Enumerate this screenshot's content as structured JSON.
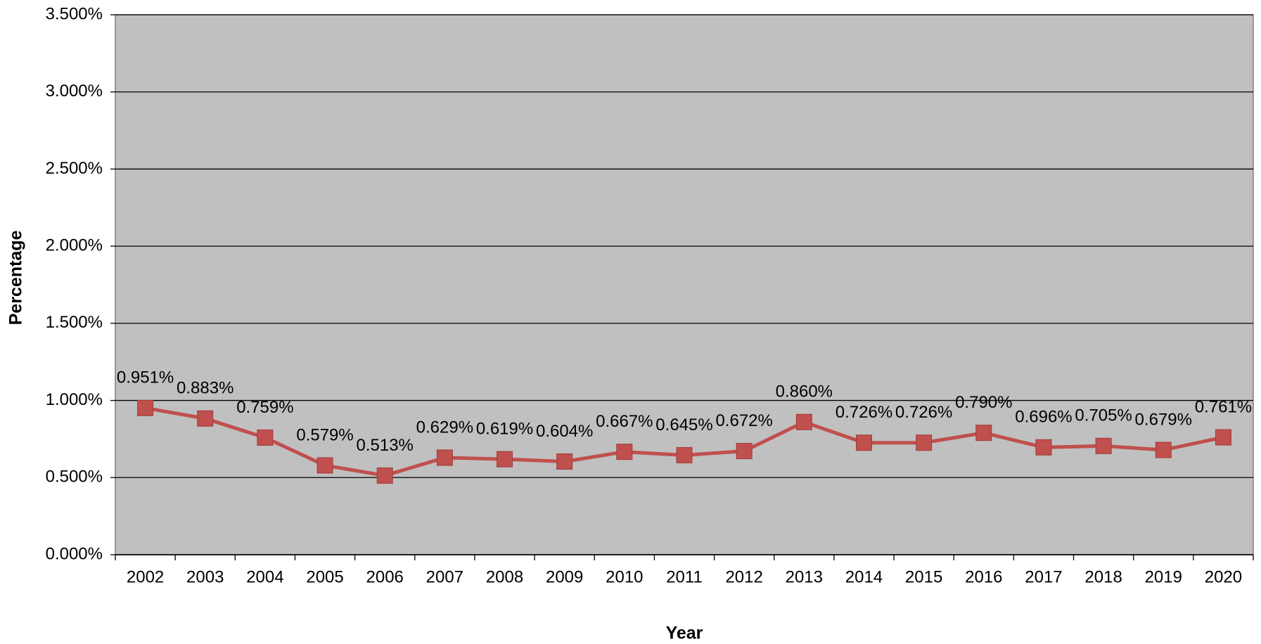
{
  "chart_data": {
    "type": "line",
    "x_label": "Year",
    "y_label": "Percentage",
    "categories": [
      "2002",
      "2003",
      "2004",
      "2005",
      "2006",
      "2007",
      "2008",
      "2009",
      "2010",
      "2011",
      "2012",
      "2013",
      "2014",
      "2015",
      "2016",
      "2017",
      "2018",
      "2019",
      "2020"
    ],
    "series": [
      {
        "name": "Percentage",
        "color": "#c0504d",
        "values": [
          0.951,
          0.883,
          0.759,
          0.579,
          0.513,
          0.629,
          0.619,
          0.604,
          0.667,
          0.645,
          0.672,
          0.86,
          0.726,
          0.726,
          0.79,
          0.696,
          0.705,
          0.679,
          0.761
        ],
        "value_labels": [
          "0.951%",
          "0.883%",
          "0.759%",
          "0.579%",
          "0.513%",
          "0.629%",
          "0.619%",
          "0.604%",
          "0.667%",
          "0.645%",
          "0.672%",
          "0.860%",
          "0.726%",
          "0.726%",
          "0.790%",
          "0.696%",
          "0.705%",
          "0.679%",
          "0.761%"
        ]
      }
    ],
    "ylim": [
      0,
      3.5
    ],
    "yticks": [
      {
        "value": 0,
        "label": "0.000%"
      },
      {
        "value": 0.5,
        "label": "0.500%"
      },
      {
        "value": 1,
        "label": "1.000%"
      },
      {
        "value": 1.5,
        "label": "1.500%"
      },
      {
        "value": 2,
        "label": "2.000%"
      },
      {
        "value": 2.5,
        "label": "2.500%"
      },
      {
        "value": 3,
        "label": "3.000%"
      },
      {
        "value": 3.5,
        "label": "3.500%"
      }
    ],
    "grid": true,
    "plot_background": "#c0c0c0"
  }
}
